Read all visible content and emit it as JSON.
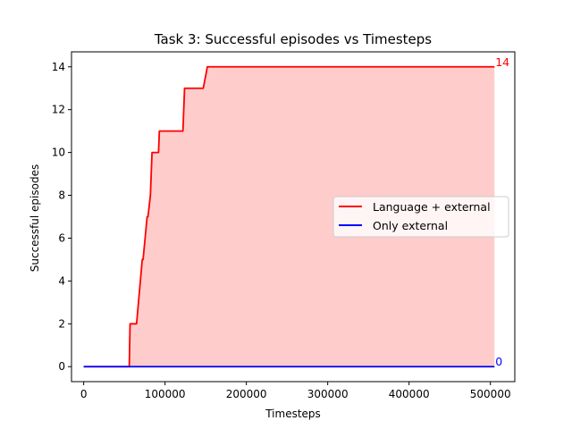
{
  "chart_data": {
    "type": "line",
    "title": "Task 3: Successful episodes vs Timesteps",
    "xlabel": "Timesteps",
    "ylabel": "Successful episodes",
    "xlim": [
      -15000,
      530000
    ],
    "ylim": [
      -0.7,
      14.7
    ],
    "xticks": [
      0,
      100000,
      200000,
      300000,
      400000,
      500000
    ],
    "yticks": [
      0,
      2,
      4,
      6,
      8,
      10,
      12,
      14
    ],
    "grid": false,
    "legend_position": "center-right",
    "series": [
      {
        "name": "Language + external",
        "color": "#ff0000",
        "fill_color": "#ffcccc",
        "end_label": "14",
        "x": [
          0,
          56000,
          57000,
          65000,
          72000,
          73000,
          78000,
          79000,
          82000,
          84000,
          92000,
          93000,
          122000,
          124000,
          147000,
          152000,
          505000
        ],
        "y": [
          0,
          0,
          2,
          2,
          5,
          5,
          7,
          7,
          8,
          10,
          10,
          11,
          11,
          13,
          13,
          14,
          14
        ]
      },
      {
        "name": "Only external",
        "color": "#0000ff",
        "end_label": "0",
        "x": [
          0,
          505000
        ],
        "y": [
          0,
          0
        ]
      }
    ]
  }
}
